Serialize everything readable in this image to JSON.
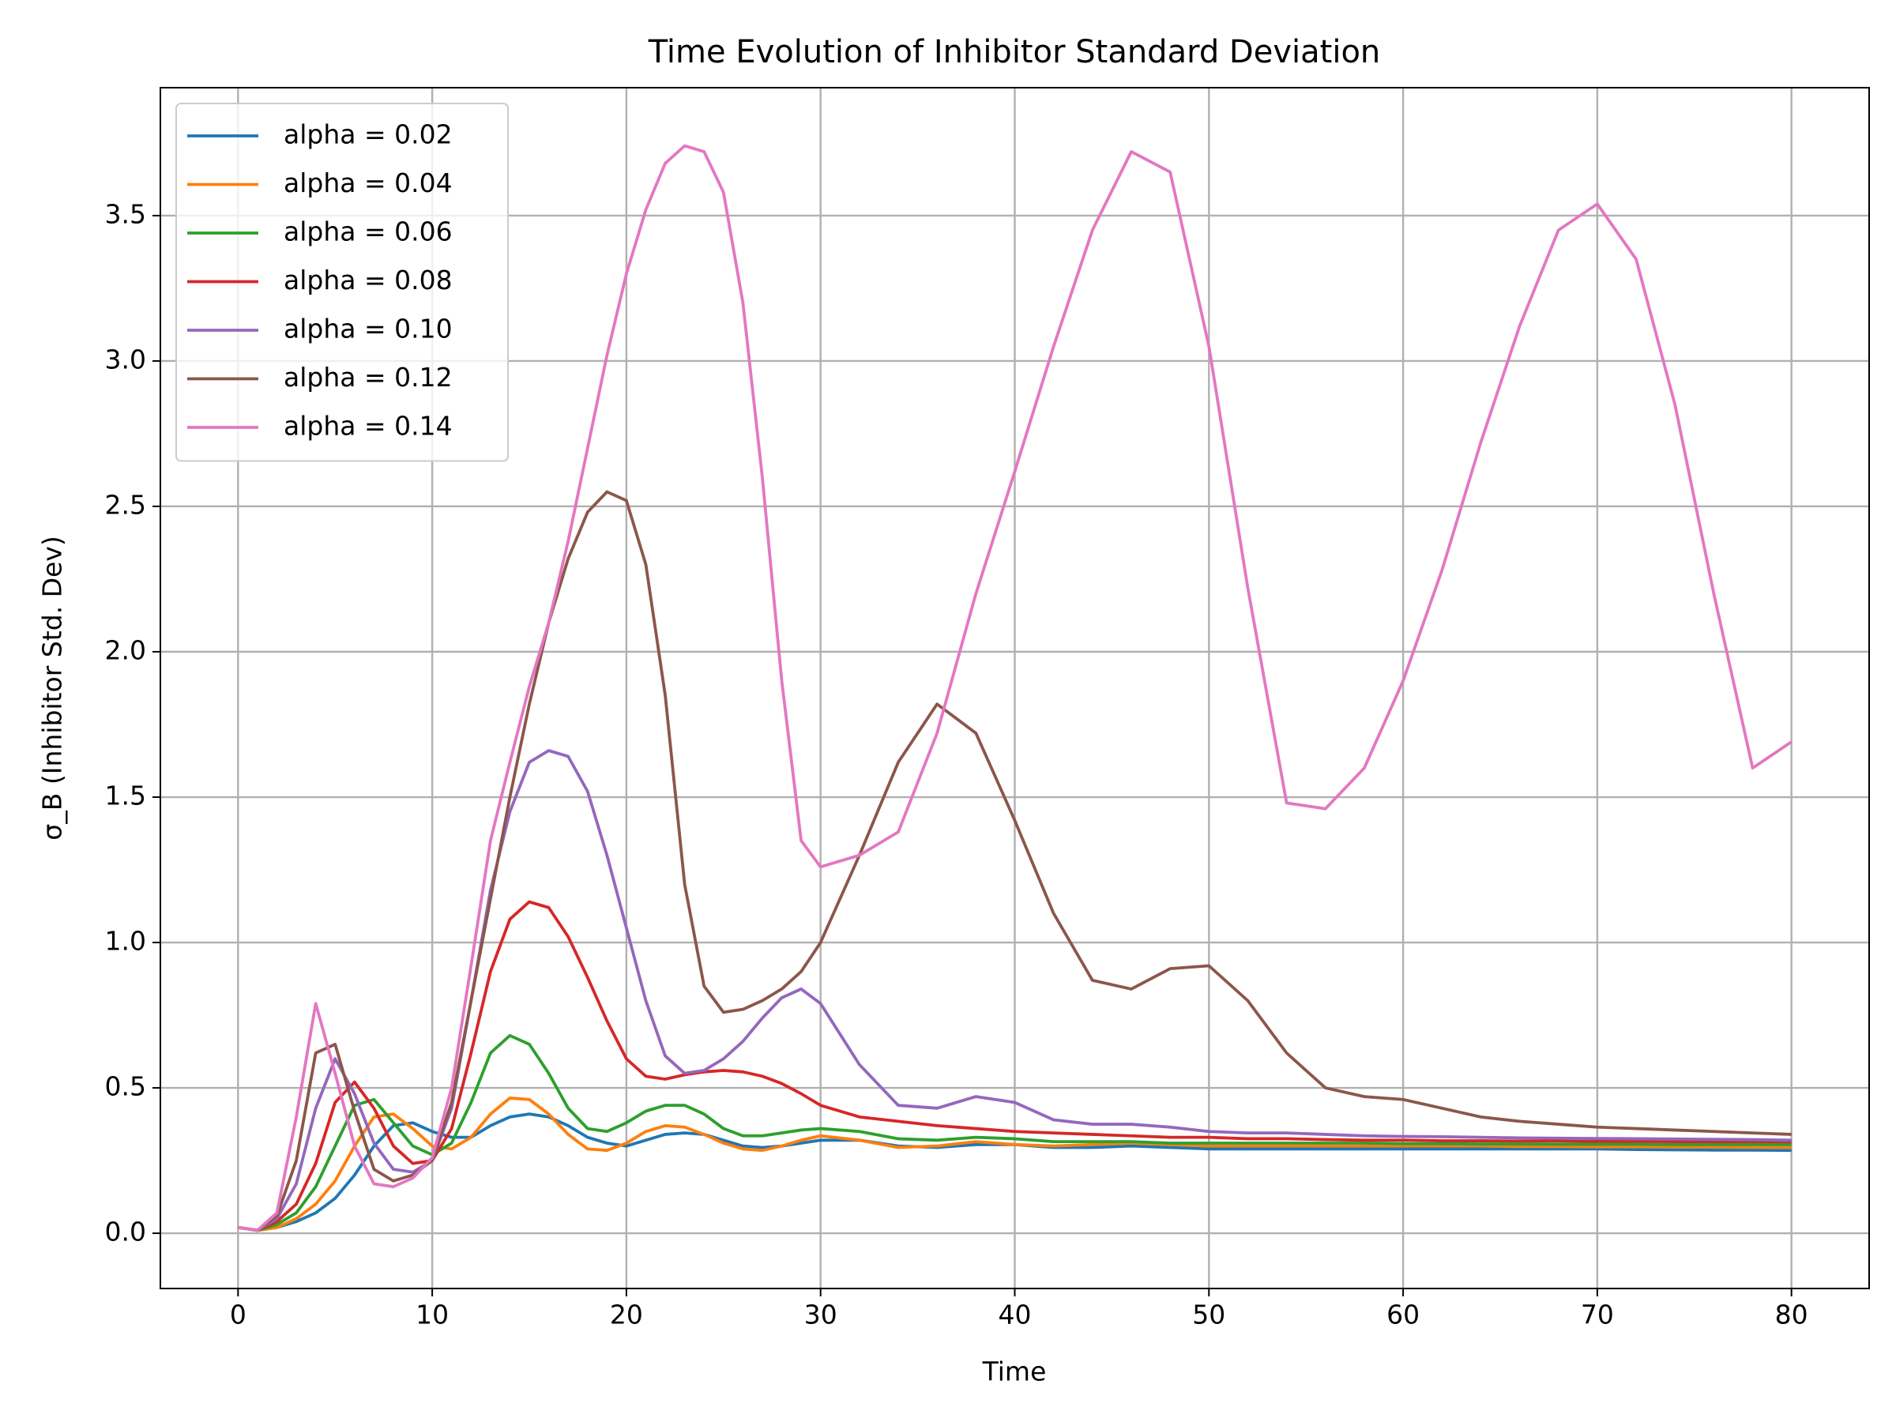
{
  "chart_data": {
    "type": "line",
    "title": "Time Evolution of Inhibitor Standard Deviation",
    "xlabel": "Time",
    "ylabel": "σ_B (Inhibitor Std. Dev)",
    "x": [
      0,
      1,
      2,
      3,
      4,
      5,
      6,
      7,
      8,
      9,
      10,
      11,
      12,
      13,
      14,
      15,
      16,
      17,
      18,
      19,
      20,
      21,
      22,
      23,
      24,
      25,
      26,
      27,
      28,
      29,
      30,
      32,
      34,
      36,
      38,
      40,
      42,
      44,
      46,
      48,
      50,
      52,
      54,
      56,
      58,
      60,
      62,
      64,
      66,
      68,
      70,
      72,
      74,
      76,
      78,
      80
    ],
    "series": [
      {
        "name": "alpha = 0.02",
        "color": "#1f77b4",
        "values": [
          0.02,
          0.01,
          0.02,
          0.04,
          0.07,
          0.12,
          0.2,
          0.3,
          0.37,
          0.38,
          0.35,
          0.33,
          0.33,
          0.37,
          0.4,
          0.41,
          0.4,
          0.37,
          0.33,
          0.31,
          0.3,
          0.32,
          0.34,
          0.345,
          0.34,
          0.32,
          0.3,
          0.295,
          0.3,
          0.31,
          0.32,
          0.32,
          0.3,
          0.295,
          0.305,
          0.305,
          0.295,
          0.295,
          0.3,
          0.295,
          0.29,
          0.29,
          0.29,
          0.29,
          0.29,
          0.29,
          0.29,
          0.29,
          0.29,
          0.29,
          0.29,
          0.288,
          0.287,
          0.286,
          0.286,
          0.285
        ]
      },
      {
        "name": "alpha = 0.04",
        "color": "#ff7f0e",
        "values": [
          0.02,
          0.01,
          0.02,
          0.05,
          0.1,
          0.18,
          0.3,
          0.4,
          0.41,
          0.36,
          0.3,
          0.29,
          0.33,
          0.41,
          0.465,
          0.46,
          0.41,
          0.34,
          0.29,
          0.285,
          0.31,
          0.35,
          0.37,
          0.365,
          0.34,
          0.31,
          0.29,
          0.285,
          0.3,
          0.32,
          0.335,
          0.32,
          0.295,
          0.3,
          0.315,
          0.305,
          0.3,
          0.305,
          0.31,
          0.305,
          0.3,
          0.3,
          0.3,
          0.3,
          0.3,
          0.3,
          0.3,
          0.3,
          0.298,
          0.298,
          0.297,
          0.297,
          0.296,
          0.296,
          0.295,
          0.295
        ]
      },
      {
        "name": "alpha = 0.06",
        "color": "#2ca02c",
        "values": [
          0.02,
          0.01,
          0.03,
          0.07,
          0.16,
          0.3,
          0.44,
          0.46,
          0.38,
          0.3,
          0.27,
          0.31,
          0.45,
          0.62,
          0.68,
          0.65,
          0.55,
          0.43,
          0.36,
          0.35,
          0.38,
          0.42,
          0.44,
          0.44,
          0.41,
          0.36,
          0.335,
          0.335,
          0.345,
          0.355,
          0.36,
          0.35,
          0.325,
          0.32,
          0.33,
          0.325,
          0.315,
          0.315,
          0.315,
          0.31,
          0.31,
          0.31,
          0.31,
          0.31,
          0.31,
          0.308,
          0.308,
          0.307,
          0.307,
          0.306,
          0.306,
          0.306,
          0.305,
          0.305,
          0.305,
          0.305
        ]
      },
      {
        "name": "alpha = 0.08",
        "color": "#d62728",
        "values": [
          0.02,
          0.01,
          0.04,
          0.1,
          0.24,
          0.45,
          0.52,
          0.43,
          0.3,
          0.24,
          0.25,
          0.36,
          0.62,
          0.9,
          1.08,
          1.14,
          1.12,
          1.02,
          0.88,
          0.73,
          0.6,
          0.54,
          0.53,
          0.545,
          0.555,
          0.56,
          0.555,
          0.54,
          0.515,
          0.48,
          0.44,
          0.4,
          0.385,
          0.37,
          0.36,
          0.35,
          0.345,
          0.34,
          0.335,
          0.33,
          0.33,
          0.325,
          0.325,
          0.322,
          0.32,
          0.32,
          0.318,
          0.318,
          0.317,
          0.317,
          0.316,
          0.316,
          0.315,
          0.315,
          0.315,
          0.315
        ]
      },
      {
        "name": "alpha = 0.10",
        "color": "#9467bd",
        "values": [
          0.02,
          0.01,
          0.05,
          0.17,
          0.43,
          0.6,
          0.48,
          0.31,
          0.22,
          0.21,
          0.25,
          0.43,
          0.8,
          1.18,
          1.45,
          1.62,
          1.66,
          1.64,
          1.52,
          1.3,
          1.05,
          0.8,
          0.61,
          0.55,
          0.56,
          0.6,
          0.66,
          0.74,
          0.81,
          0.84,
          0.79,
          0.58,
          0.44,
          0.43,
          0.47,
          0.45,
          0.39,
          0.375,
          0.375,
          0.365,
          0.35,
          0.345,
          0.345,
          0.34,
          0.335,
          0.333,
          0.332,
          0.33,
          0.328,
          0.327,
          0.326,
          0.325,
          0.324,
          0.323,
          0.322,
          0.32
        ]
      },
      {
        "name": "alpha = 0.12",
        "color": "#8c564b",
        "values": [
          0.02,
          0.01,
          0.06,
          0.25,
          0.62,
          0.65,
          0.42,
          0.22,
          0.18,
          0.2,
          0.25,
          0.45,
          0.8,
          1.15,
          1.5,
          1.82,
          2.1,
          2.32,
          2.48,
          2.55,
          2.52,
          2.3,
          1.85,
          1.2,
          0.85,
          0.76,
          0.77,
          0.8,
          0.84,
          0.9,
          1.0,
          1.3,
          1.62,
          1.82,
          1.72,
          1.42,
          1.1,
          0.87,
          0.84,
          0.91,
          0.92,
          0.8,
          0.62,
          0.5,
          0.47,
          0.46,
          0.43,
          0.4,
          0.385,
          0.375,
          0.365,
          0.36,
          0.355,
          0.35,
          0.345,
          0.34
        ]
      },
      {
        "name": "alpha = 0.14",
        "color": "#e377c2",
        "values": [
          0.02,
          0.01,
          0.07,
          0.4,
          0.79,
          0.55,
          0.3,
          0.17,
          0.16,
          0.19,
          0.26,
          0.5,
          0.92,
          1.35,
          1.62,
          1.88,
          2.1,
          2.38,
          2.7,
          3.02,
          3.3,
          3.52,
          3.68,
          3.74,
          3.72,
          3.58,
          3.2,
          2.6,
          1.9,
          1.35,
          1.26,
          1.3,
          1.38,
          1.72,
          2.2,
          2.62,
          3.05,
          3.45,
          3.72,
          3.65,
          3.05,
          2.22,
          1.48,
          1.46,
          1.6,
          1.9,
          2.28,
          2.72,
          3.12,
          3.45,
          3.54,
          3.35,
          2.85,
          2.2,
          1.6,
          1.69
        ]
      }
    ],
    "xlim": [
      -4,
      84
    ],
    "ylim": [
      -0.19,
      3.94
    ],
    "xticks": [
      0,
      10,
      20,
      30,
      40,
      50,
      60,
      70,
      80
    ],
    "yticks": [
      {
        "value": 0,
        "label": "0.0"
      },
      0.5,
      {
        "value": 1,
        "label": "1.0"
      },
      1.5,
      {
        "value": 2,
        "label": "2.0"
      },
      2.5,
      {
        "value": 3,
        "label": "3.0"
      },
      3.5
    ],
    "grid": true,
    "legend": "upper-left"
  }
}
